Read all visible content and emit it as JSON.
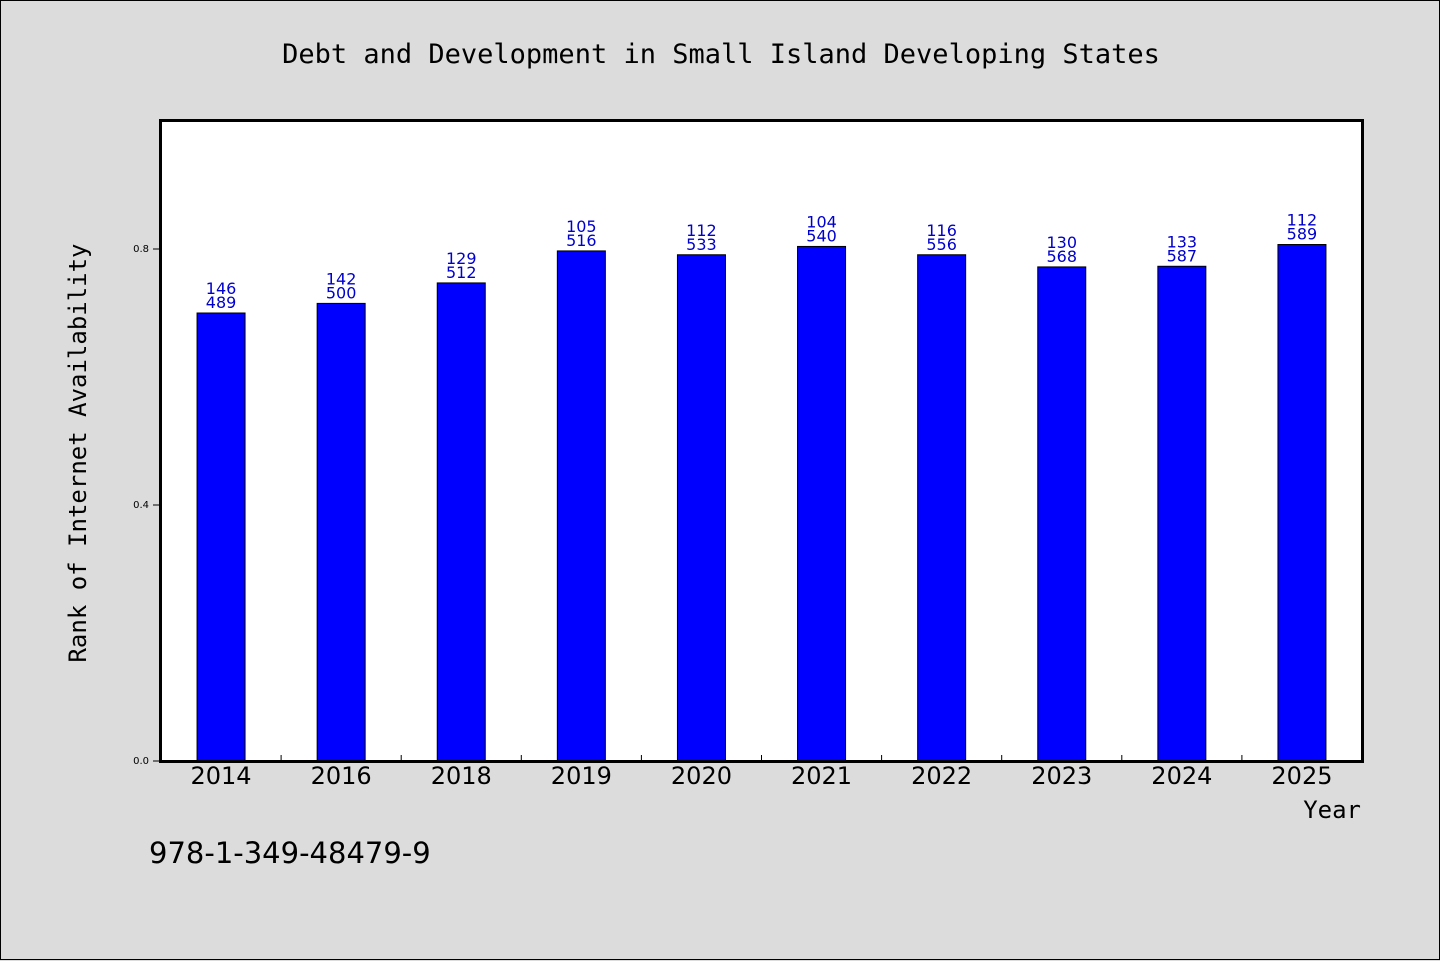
{
  "chart_data": {
    "type": "bar",
    "title": "Debt and Development in Small Island Developing States",
    "xlabel": "Year",
    "ylabel": "Rank of Internet Availability",
    "categories": [
      "2014",
      "2016",
      "2018",
      "2019",
      "2020",
      "2021",
      "2022",
      "2023",
      "2024",
      "2025"
    ],
    "values": [
      0.7,
      0.715,
      0.747,
      0.797,
      0.791,
      0.804,
      0.791,
      0.772,
      0.773,
      0.807
    ],
    "data_labels": [
      [
        "146",
        "489"
      ],
      [
        "142",
        "500"
      ],
      [
        "129",
        "512"
      ],
      [
        "105",
        "516"
      ],
      [
        "112",
        "533"
      ],
      [
        "104",
        "540"
      ],
      [
        "116",
        "556"
      ],
      [
        "130",
        "568"
      ],
      [
        "133",
        "587"
      ],
      [
        "112",
        "589"
      ]
    ],
    "ylim": [
      0,
      1.0
    ],
    "yticks": [
      0.0,
      0.4,
      0.8
    ],
    "ytick_labels": [
      "0.0",
      "0.4",
      "0.8"
    ],
    "grid": false,
    "colors": {
      "bar": "#0000ff",
      "label": "#0000cc",
      "background": "#dcdcdc",
      "plot_background": "#ffffff"
    }
  },
  "footnote": "978-1-349-48479-9"
}
